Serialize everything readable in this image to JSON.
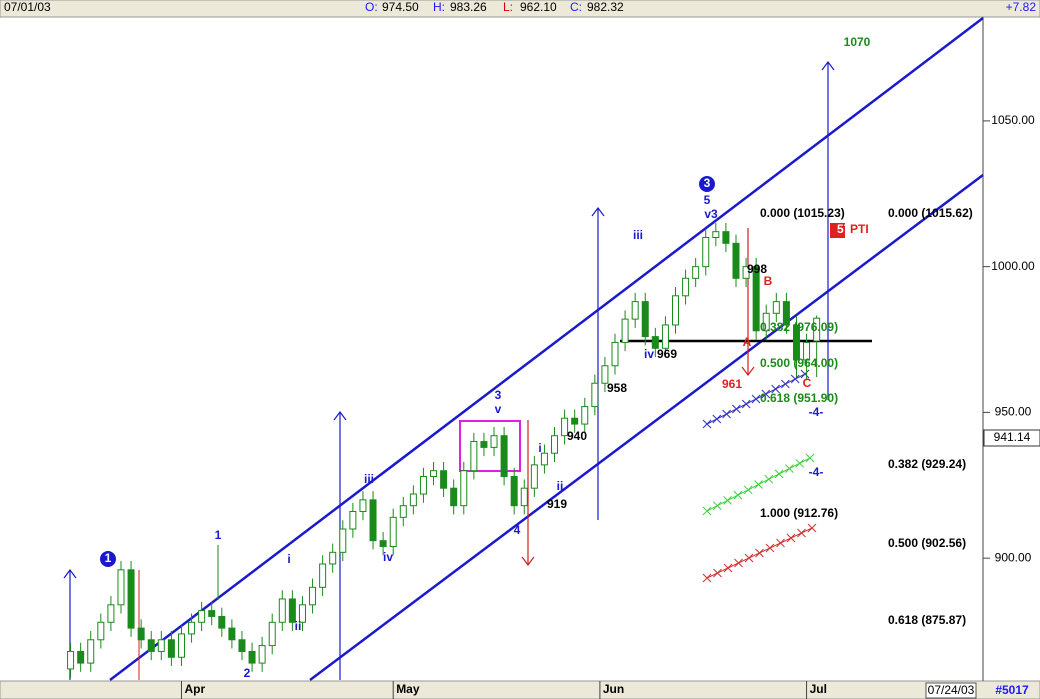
{
  "header": {
    "date": "07/01/03",
    "items": [
      {
        "label": "O:",
        "value": "974.50"
      },
      {
        "label": "H:",
        "value": "983.26"
      },
      {
        "label": "L:",
        "value": "962.10"
      },
      {
        "label": "C:",
        "value": "982.32"
      }
    ],
    "change": "+7.82"
  },
  "footer": {
    "date": "07/24/03",
    "id": "#5017"
  },
  "chart_data": {
    "type": "candlestick",
    "xlim": [
      -7,
      90.5
    ],
    "xticks": [
      {
        "value": 11,
        "label": "Apr"
      },
      {
        "value": 32,
        "label": "May"
      },
      {
        "value": 52.5,
        "label": "Jun"
      },
      {
        "value": 73,
        "label": "Jul"
      }
    ],
    "ylim": [
      858.2,
      1085.3
    ],
    "yticks": [
      {
        "value": 900,
        "label": "900.00"
      },
      {
        "value": 950,
        "label": "950.00"
      },
      {
        "value": 1000,
        "label": "1000.00"
      },
      {
        "value": 1050,
        "label": "1050.00"
      }
    ],
    "cursor_label": "941.14",
    "candles": [
      [
        862,
        871,
        859,
        868
      ],
      [
        868,
        871,
        861,
        864
      ],
      [
        864,
        875,
        861,
        872
      ],
      [
        872,
        881,
        869,
        878
      ],
      [
        878,
        887,
        875,
        884
      ],
      [
        884,
        899,
        881,
        896
      ],
      [
        896,
        899,
        873,
        876
      ],
      [
        876,
        879,
        869,
        872
      ],
      [
        872,
        875,
        865,
        868
      ],
      [
        868,
        875,
        865,
        872
      ],
      [
        872,
        875,
        863,
        866
      ],
      [
        866,
        877,
        863,
        874
      ],
      [
        874,
        881,
        871,
        878
      ],
      [
        878,
        885,
        875,
        882
      ],
      [
        882,
        885,
        877,
        880
      ],
      [
        880,
        883,
        873,
        876
      ],
      [
        876,
        879,
        869,
        872
      ],
      [
        872,
        875,
        865,
        868
      ],
      [
        868,
        871,
        861,
        864
      ],
      [
        864,
        873,
        861,
        870
      ],
      [
        870,
        881,
        867,
        878
      ],
      [
        878,
        889,
        875,
        886
      ],
      [
        886,
        889,
        875,
        878
      ],
      [
        878,
        887,
        875,
        884
      ],
      [
        884,
        893,
        881,
        890
      ],
      [
        890,
        901,
        887,
        898
      ],
      [
        898,
        905,
        895,
        902
      ],
      [
        902,
        913,
        899,
        910
      ],
      [
        910,
        919,
        907,
        916
      ],
      [
        916,
        923,
        913,
        920
      ],
      [
        920,
        923,
        903,
        906
      ],
      [
        906,
        909,
        901,
        904
      ],
      [
        904,
        917,
        901,
        914
      ],
      [
        914,
        921,
        911,
        918
      ],
      [
        918,
        925,
        915,
        922
      ],
      [
        922,
        931,
        919,
        928
      ],
      [
        928,
        933,
        925,
        930
      ],
      [
        930,
        933,
        921,
        924
      ],
      [
        924,
        927,
        915,
        918
      ],
      [
        918,
        933,
        915,
        930
      ],
      [
        930,
        943,
        927,
        940
      ],
      [
        940,
        943,
        935,
        938
      ],
      [
        938,
        945,
        935,
        942
      ],
      [
        942,
        945,
        925,
        928
      ],
      [
        928,
        931,
        915,
        918
      ],
      [
        918,
        927,
        915,
        924
      ],
      [
        924,
        935,
        921,
        932
      ],
      [
        932,
        939,
        929,
        936
      ],
      [
        936,
        945,
        933,
        942
      ],
      [
        942,
        951,
        939,
        948
      ],
      [
        948,
        951,
        943,
        946
      ],
      [
        946,
        955,
        943,
        952
      ],
      [
        952,
        963,
        949,
        960
      ],
      [
        960,
        969,
        957,
        966
      ],
      [
        966,
        977,
        963,
        974
      ],
      [
        974,
        985,
        971,
        982
      ],
      [
        982,
        991,
        979,
        988
      ],
      [
        988,
        991,
        973,
        976
      ],
      [
        976,
        979,
        969,
        972
      ],
      [
        972,
        983,
        969,
        980
      ],
      [
        980,
        993,
        977,
        990
      ],
      [
        990,
        999,
        987,
        996
      ],
      [
        996,
        1003,
        993,
        1000
      ],
      [
        1000,
        1013,
        997,
        1010
      ],
      [
        1010,
        1015,
        1007,
        1012
      ],
      [
        1012,
        1015,
        1005,
        1008
      ],
      [
        1008,
        1011,
        993,
        996
      ],
      [
        996,
        1003,
        993,
        1000
      ],
      [
        1000,
        1003,
        975,
        978
      ],
      [
        978,
        987,
        975,
        984
      ],
      [
        984,
        991,
        981,
        988
      ],
      [
        988,
        991,
        977,
        980
      ],
      [
        980,
        983,
        962,
        968
      ],
      [
        968,
        977,
        961,
        974
      ],
      [
        974.5,
        983.26,
        962.1,
        982.32
      ]
    ],
    "annotations": [
      "1070",
      "961",
      "998",
      "958",
      "969",
      "940",
      "919",
      "iv",
      "iii",
      "iii",
      "iv",
      "i",
      "ii",
      "i",
      "ii",
      "1",
      "2",
      "3",
      "v",
      "4",
      "5",
      "v3",
      "B",
      "C",
      "A",
      "0.000 (1015.23)",
      "0.000 (1015.62)",
      "57",
      "PTI",
      "0.382 (976.09)",
      "0.500 (964.00)",
      "0.618 (951.90)",
      "-4-",
      "-4-",
      "0.382 (929.24)",
      "1.000 (912.76)",
      "0.500 (902.56)",
      "0.618 (875.87)",
      "1",
      "3"
    ]
  }
}
